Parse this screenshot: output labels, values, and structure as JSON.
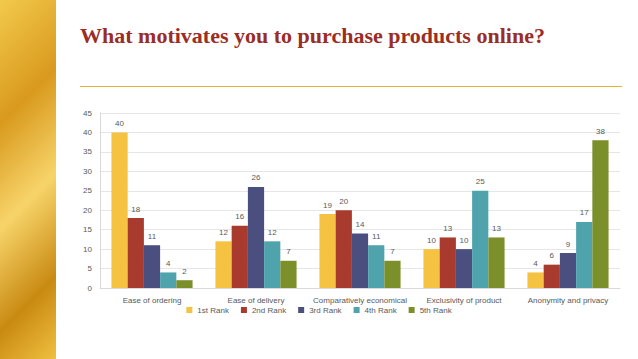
{
  "chart_data": {
    "type": "bar",
    "title": "What motivates you to purchase products online?",
    "categories": [
      "Ease of ordering",
      "Ease of delivery",
      "Comparatively economical",
      "Exclusivity of product",
      "Anonymity and privacy"
    ],
    "series": [
      {
        "name": "1st Rank",
        "color": "#f5c242",
        "values": [
          40,
          12,
          19,
          10,
          4
        ]
      },
      {
        "name": "2nd Rank",
        "color": "#a83a2e",
        "values": [
          18,
          16,
          20,
          13,
          6
        ]
      },
      {
        "name": "3rd Rank",
        "color": "#4b4f80",
        "values": [
          11,
          26,
          14,
          10,
          9
        ]
      },
      {
        "name": "4th Rank",
        "color": "#4fa3ad",
        "values": [
          4,
          12,
          11,
          25,
          17
        ]
      },
      {
        "name": "5th Rank",
        "color": "#7b8f2b",
        "values": [
          2,
          7,
          7,
          13,
          38
        ]
      }
    ],
    "ylim": [
      0,
      45
    ],
    "yticks": [
      0,
      5,
      10,
      15,
      20,
      25,
      30,
      35,
      40,
      45
    ],
    "grid": true,
    "legend": "bottom",
    "data_labels": true
  }
}
